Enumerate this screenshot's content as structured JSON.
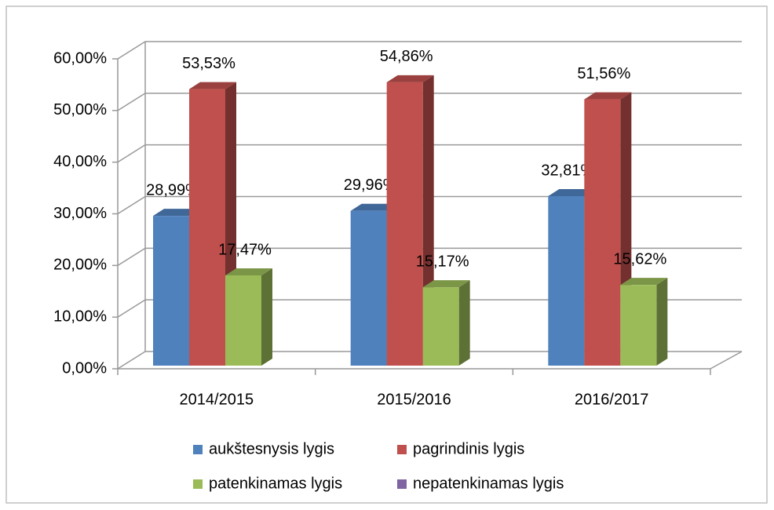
{
  "chart_data": {
    "type": "bar3d",
    "categories": [
      "2014/2015",
      "2015/2016",
      "2016/2017"
    ],
    "series": [
      {
        "name": "aukštesnysis lygis",
        "color": "#4f81bd",
        "values": [
          28.99,
          29.96,
          32.81
        ],
        "value_labels": [
          "28,99%",
          "29,96%",
          "32,81%"
        ]
      },
      {
        "name": "pagrindinis lygis",
        "color": "#c0504d",
        "values": [
          53.53,
          54.86,
          51.56
        ],
        "value_labels": [
          "53,53%",
          "54,86%",
          "51,56%"
        ]
      },
      {
        "name": "patenkinamas lygis",
        "color": "#9bbb59",
        "values": [
          17.47,
          15.17,
          15.62
        ],
        "value_labels": [
          "17,47%",
          "15,17%",
          "15,62%"
        ]
      },
      {
        "name": "nepatenkinamas lygis",
        "color": "#8064a2",
        "values": [
          null,
          null,
          null
        ]
      }
    ],
    "ylim": [
      0,
      60
    ],
    "yticks": [
      {
        "value": 0,
        "label": "0,00%"
      },
      {
        "value": 10,
        "label": "10,00%"
      },
      {
        "value": 20,
        "label": "20,00%"
      },
      {
        "value": 30,
        "label": "30,00%"
      },
      {
        "value": 40,
        "label": "40,00%"
      },
      {
        "value": 50,
        "label": "50,00%"
      },
      {
        "value": 60,
        "label": "60,00%"
      }
    ],
    "grid": true,
    "legend": "bottom"
  }
}
